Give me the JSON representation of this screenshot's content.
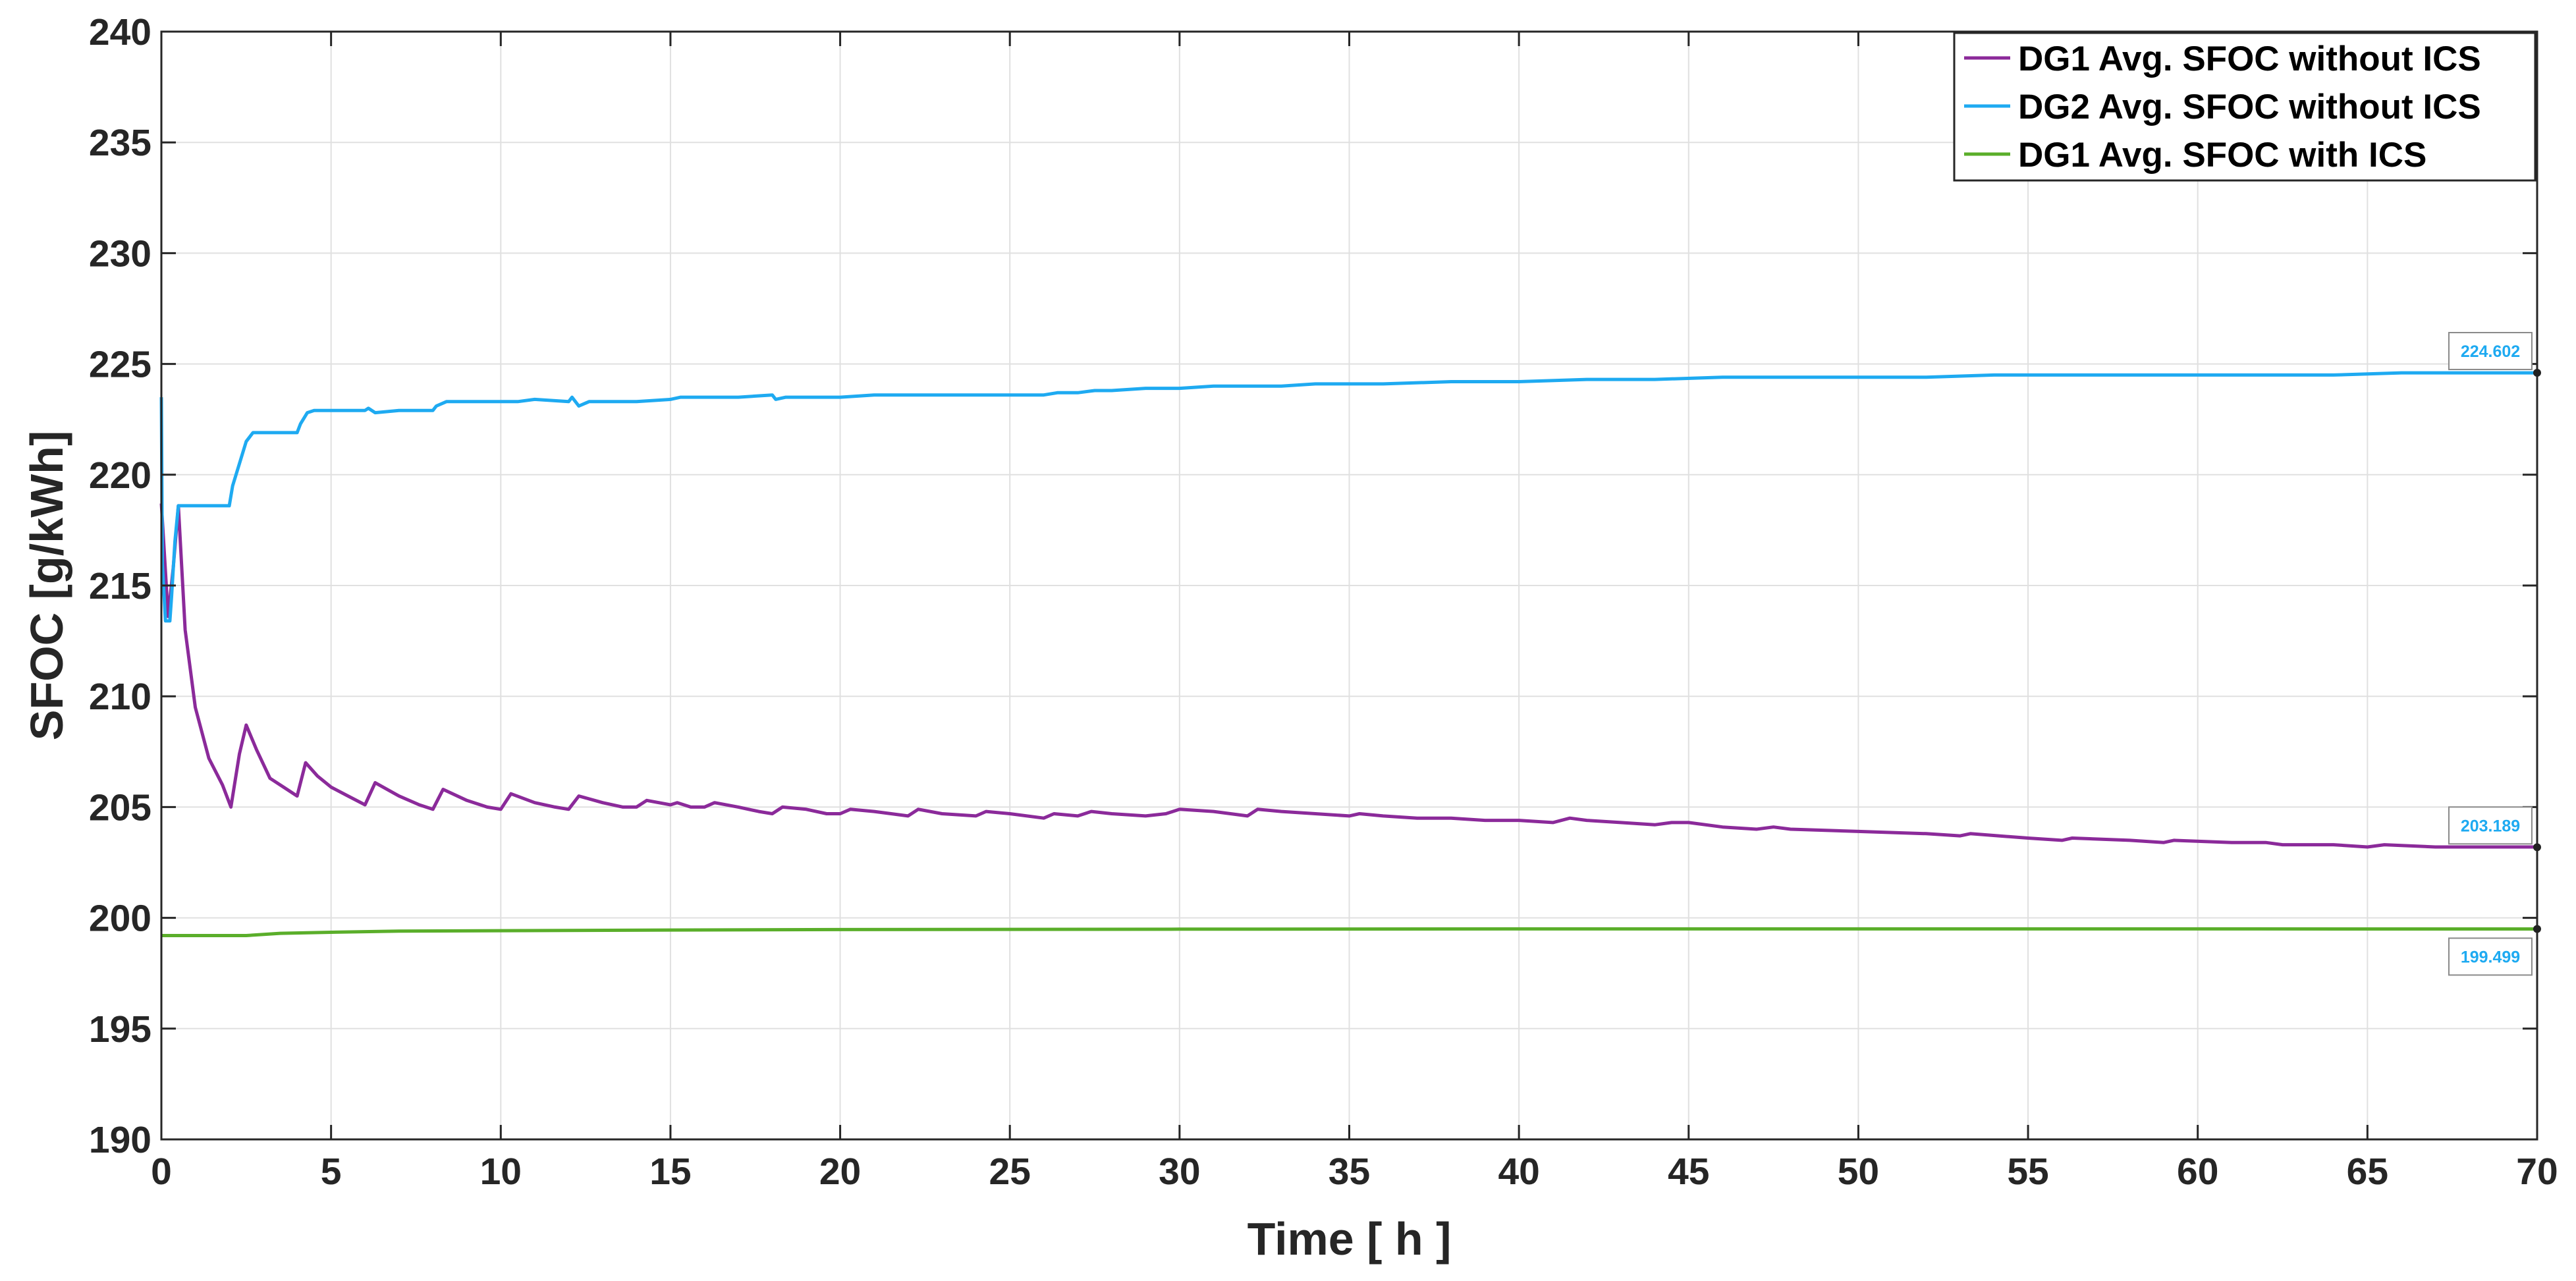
{
  "chart_data": {
    "type": "line",
    "xlabel": "Time [ h ]",
    "ylabel": "SFOC [g/kWh]",
    "xlim": [
      0,
      70
    ],
    "ylim": [
      190,
      240
    ],
    "xticks": [
      0,
      5,
      10,
      15,
      20,
      25,
      30,
      35,
      40,
      45,
      50,
      55,
      60,
      65,
      70
    ],
    "yticks": [
      190,
      195,
      200,
      205,
      210,
      215,
      220,
      225,
      230,
      235,
      240
    ],
    "grid": true,
    "legend_position": "top-right",
    "series": [
      {
        "name": "DG1 Avg. SFOC without ICS",
        "color": "#8B2A9A",
        "x": [
          0,
          0.2,
          0.35,
          0.5,
          0.7,
          1.0,
          1.4,
          1.8,
          2.05,
          2.3,
          2.5,
          2.8,
          3.2,
          3.6,
          4.0,
          4.25,
          4.6,
          5.0,
          5.5,
          6.0,
          6.3,
          7.0,
          7.6,
          8.0,
          8.3,
          9.0,
          9.6,
          10.0,
          10.3,
          11.0,
          11.6,
          12.0,
          12.3,
          13.0,
          13.6,
          14.0,
          14.3,
          15.0,
          15.2,
          15.6,
          16.0,
          16.3,
          17.0,
          17.6,
          18.0,
          18.3,
          19.0,
          19.6,
          20.0,
          20.3,
          21.0,
          22.0,
          22.3,
          23.0,
          24.0,
          24.3,
          25.0,
          26.0,
          26.3,
          27.0,
          27.4,
          28.0,
          29.0,
          29.6,
          30.0,
          31.0,
          32.0,
          32.3,
          33.0,
          34.0,
          35.0,
          35.3,
          36.0,
          37.0,
          38.0,
          39.0,
          40.0,
          41.0,
          41.5,
          42.0,
          43.0,
          44.0,
          44.5,
          45.0,
          46.0,
          47.0,
          47.5,
          48.0,
          50.0,
          52.0,
          53.0,
          53.3,
          55.0,
          56.0,
          56.3,
          58.0,
          59.0,
          59.3,
          61.0,
          62.0,
          62.5,
          64.0,
          65.0,
          65.5,
          67.0,
          68.0,
          68.5,
          70.0
        ],
        "values": [
          218.7,
          213.6,
          215.8,
          218.6,
          213.0,
          209.5,
          207.2,
          206.0,
          205.0,
          207.4,
          208.7,
          207.6,
          206.3,
          205.9,
          205.5,
          207.0,
          206.4,
          205.9,
          205.5,
          205.1,
          206.1,
          205.5,
          205.1,
          204.9,
          205.8,
          205.3,
          205.0,
          204.9,
          205.6,
          205.2,
          205.0,
          204.9,
          205.5,
          205.2,
          205.0,
          205.0,
          205.3,
          205.1,
          205.2,
          205.0,
          205.0,
          205.2,
          205.0,
          204.8,
          204.7,
          205.0,
          204.9,
          204.7,
          204.7,
          204.9,
          204.8,
          204.6,
          204.9,
          204.7,
          204.6,
          204.8,
          204.7,
          204.5,
          204.7,
          204.6,
          204.8,
          204.7,
          204.6,
          204.7,
          204.9,
          204.8,
          204.6,
          204.9,
          204.8,
          204.7,
          204.6,
          204.7,
          204.6,
          204.5,
          204.5,
          204.4,
          204.4,
          204.3,
          204.5,
          204.4,
          204.3,
          204.2,
          204.3,
          204.3,
          204.1,
          204.0,
          204.1,
          204.0,
          203.9,
          203.8,
          203.7,
          203.8,
          203.6,
          203.5,
          203.6,
          203.5,
          203.4,
          203.5,
          203.4,
          203.4,
          203.3,
          203.3,
          203.2,
          203.3,
          203.2,
          203.2,
          203.2,
          203.2
        ]
      },
      {
        "name": "DG2 Avg. SFOC without ICS",
        "color": "#1EAAF1",
        "x": [
          0,
          0.03,
          0.12,
          0.25,
          0.3,
          0.4,
          0.5,
          0.7,
          1.0,
          1.5,
          2.0,
          2.1,
          2.3,
          2.5,
          2.7,
          3.0,
          3.5,
          4.0,
          4.1,
          4.3,
          4.5,
          5.0,
          5.5,
          6.0,
          6.1,
          6.3,
          7.0,
          7.5,
          8.0,
          8.1,
          8.4,
          9.0,
          10.0,
          10.5,
          11.0,
          12.0,
          12.1,
          12.3,
          12.6,
          13.0,
          14.0,
          15.0,
          15.3,
          16.0,
          17.0,
          18.0,
          18.1,
          18.4,
          19.0,
          20.0,
          21.0,
          22.0,
          23.0,
          24.0,
          25.0,
          26.0,
          26.4,
          27.0,
          27.5,
          28.0,
          29.0,
          30.0,
          31.0,
          32.0,
          33.0,
          34.0,
          35.0,
          36.0,
          38.0,
          40.0,
          42.0,
          44.0,
          46.0,
          48.0,
          50.0,
          52.0,
          54.0,
          56.0,
          58.0,
          60.0,
          62.0,
          64.0,
          66.0,
          68.0,
          70.0
        ],
        "values": [
          223.5,
          216.0,
          213.4,
          213.4,
          214.5,
          217.0,
          218.6,
          218.6,
          218.6,
          218.6,
          218.6,
          219.5,
          220.5,
          221.5,
          221.9,
          221.9,
          221.9,
          221.9,
          222.3,
          222.8,
          222.9,
          222.9,
          222.9,
          222.9,
          223.0,
          222.8,
          222.9,
          222.9,
          222.9,
          223.1,
          223.3,
          223.3,
          223.3,
          223.3,
          223.4,
          223.3,
          223.5,
          223.1,
          223.3,
          223.3,
          223.3,
          223.4,
          223.5,
          223.5,
          223.5,
          223.6,
          223.4,
          223.5,
          223.5,
          223.5,
          223.6,
          223.6,
          223.6,
          223.6,
          223.6,
          223.6,
          223.7,
          223.7,
          223.8,
          223.8,
          223.9,
          223.9,
          224.0,
          224.0,
          224.0,
          224.1,
          224.1,
          224.1,
          224.2,
          224.2,
          224.3,
          224.3,
          224.4,
          224.4,
          224.4,
          224.4,
          224.5,
          224.5,
          224.5,
          224.5,
          224.5,
          224.5,
          224.6,
          224.6,
          224.6
        ]
      },
      {
        "name": "DG1 Avg. SFOC with ICS",
        "color": "#5AAE2A",
        "x": [
          0,
          1.0,
          2.5,
          3.5,
          5.0,
          7.0,
          10.0,
          15.0,
          20.0,
          25.0,
          30.0,
          40.0,
          50.0,
          60.0,
          70.0
        ],
        "values": [
          199.2,
          199.2,
          199.2,
          199.3,
          199.35,
          199.4,
          199.42,
          199.45,
          199.47,
          199.48,
          199.49,
          199.5,
          199.5,
          199.5,
          199.499
        ]
      }
    ],
    "datatips": [
      {
        "x": 70,
        "y": 224.602,
        "label": "224.602",
        "color": "#1EAAF1"
      },
      {
        "x": 70,
        "y": 203.189,
        "label": "203.189",
        "color": "#1EAAF1"
      },
      {
        "x": 70,
        "y": 199.499,
        "label": "199.499",
        "color": "#1EAAF1"
      }
    ]
  }
}
